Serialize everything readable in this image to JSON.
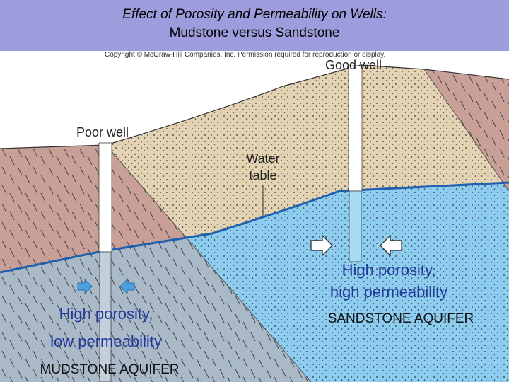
{
  "header": {
    "title_lines": [
      "Effect of Porosity and Permeability on Wells:",
      "Mudstone versus Sandstone"
    ]
  },
  "copyright": "Copyright © McGraw-Hill Companies, Inc. Permission required for reproduction or display.",
  "labels": {
    "good_well": "Good well",
    "poor_well": "Poor well",
    "water_table": [
      "Water",
      "table"
    ]
  },
  "sandstone": {
    "description": [
      "High porosity,",
      "high permeability"
    ],
    "name": "SANDSTONE AQUIFER"
  },
  "mudstone": {
    "description": [
      "High porosity,",
      "low permeability"
    ],
    "name": "MUDSTONE AQUIFER"
  }
}
